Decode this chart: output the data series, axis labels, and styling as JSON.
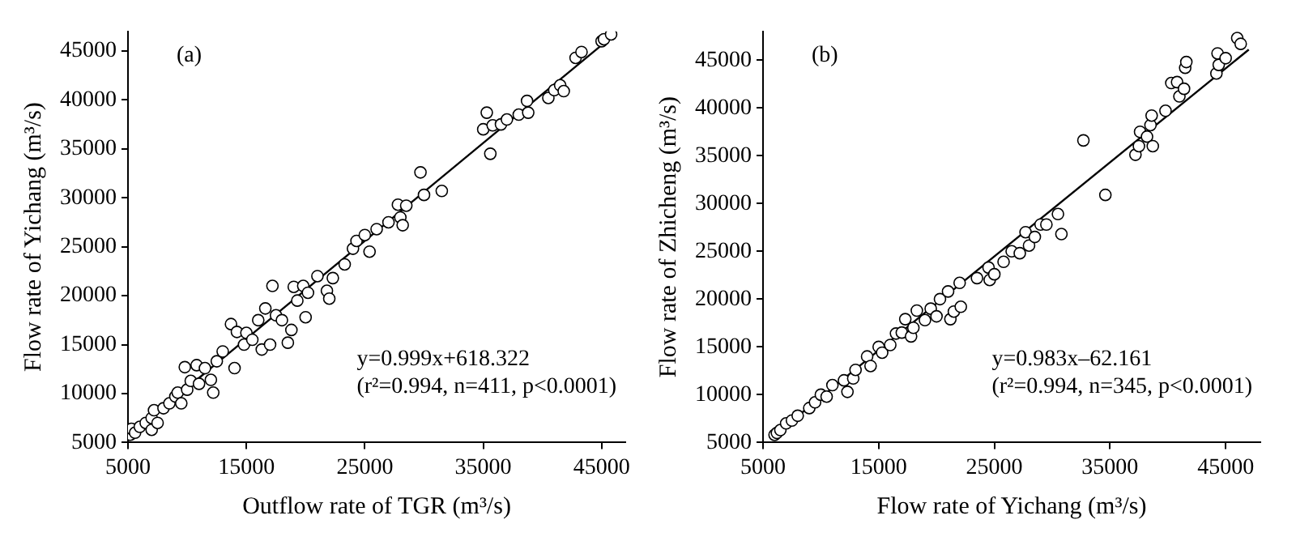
{
  "chart_data": [
    {
      "type": "scatter",
      "title": "(a)",
      "xlabel": "Outflow rate of TGR (m³/s)",
      "ylabel": "Flow rate of Yichang (m³/s)",
      "xlim": [
        5000,
        47000
      ],
      "ylim": [
        5000,
        47000
      ],
      "xticks": [
        5000,
        15000,
        25000,
        35000,
        45000
      ],
      "yticks": [
        5000,
        10000,
        15000,
        20000,
        25000,
        30000,
        35000,
        40000,
        45000
      ],
      "grid": false,
      "legend": false,
      "marker": "circle",
      "annotations": [
        "y=0.999x+618.322",
        "(r²=0.994, n=411, p<0.0001)"
      ],
      "series": [
        {
          "type": "scatter",
          "color": "#000000",
          "x": [
            5200,
            5300,
            5600,
            6000,
            6500,
            7000,
            7000,
            7200,
            7500,
            8000,
            8500,
            9000,
            9200,
            9500,
            9800,
            10000,
            10300,
            10800,
            11000,
            11500,
            12000,
            12200,
            12500,
            13000,
            13700,
            14000,
            14200,
            14800,
            15000,
            15500,
            16000,
            16300,
            16600,
            17000,
            17200,
            17500,
            18000,
            18500,
            18800,
            19000,
            19300,
            19800,
            20000,
            20200,
            21000,
            21800,
            22000,
            22300,
            23300,
            24000,
            24300,
            25000,
            25400,
            26000,
            27000,
            27800,
            28000,
            28200,
            28500,
            29700,
            30000,
            31500,
            35000,
            35300,
            35600,
            35800,
            36500,
            37000,
            38000,
            38700,
            38800,
            40500,
            41000,
            41500,
            41800,
            42800,
            43300,
            45000,
            45200,
            45800
          ],
          "values": [
            5800,
            6400,
            6000,
            6600,
            7000,
            6300,
            7500,
            8300,
            7000,
            8500,
            9000,
            9700,
            10100,
            9000,
            12700,
            10400,
            11300,
            12900,
            11000,
            12600,
            11400,
            10100,
            13300,
            14300,
            17100,
            12600,
            16300,
            15000,
            16200,
            15500,
            17500,
            14500,
            18700,
            15000,
            21000,
            18000,
            17500,
            15200,
            16500,
            20900,
            19500,
            21000,
            17800,
            20300,
            22000,
            20500,
            19700,
            21800,
            23200,
            24800,
            25600,
            26200,
            24500,
            26800,
            27500,
            29300,
            28000,
            27200,
            29200,
            32600,
            30300,
            30700,
            37000,
            38700,
            34500,
            37400,
            37500,
            38000,
            38500,
            39900,
            38700,
            40200,
            41000,
            41500,
            40900,
            44300,
            44900,
            46000,
            46200,
            46700
          ]
        },
        {
          "type": "line",
          "color": "#000000",
          "marker": "none",
          "x": [
            5000,
            46000
          ],
          "values": [
            5600,
            46600
          ]
        }
      ]
    },
    {
      "type": "scatter",
      "title": "(b)",
      "xlabel": "Flow rate of Yichang (m³/s)",
      "ylabel": "Flow rate of Zhicheng (m³/s)",
      "xlim": [
        5000,
        48000
      ],
      "ylim": [
        5000,
        48000
      ],
      "xticks": [
        5000,
        15000,
        25000,
        35000,
        45000
      ],
      "yticks": [
        5000,
        10000,
        15000,
        20000,
        25000,
        30000,
        35000,
        40000,
        45000
      ],
      "grid": false,
      "legend": false,
      "marker": "circle",
      "annotations": [
        "y=0.983x–62.161",
        "(r²=0.994, n=345, p<0.0001)"
      ],
      "series": [
        {
          "type": "scatter",
          "color": "#000000",
          "x": [
            6000,
            6200,
            6500,
            7000,
            7500,
            8000,
            9000,
            9500,
            10000,
            10500,
            11000,
            12000,
            12300,
            12800,
            13000,
            14000,
            14300,
            15000,
            15300,
            16000,
            16500,
            17000,
            17300,
            17800,
            18000,
            18300,
            19000,
            19500,
            20000,
            20300,
            21000,
            21200,
            21500,
            22000,
            22100,
            23500,
            24500,
            24600,
            25000,
            25800,
            26500,
            27200,
            27700,
            28000,
            28500,
            29000,
            29500,
            30500,
            30800,
            32700,
            34600,
            37200,
            37500,
            37600,
            38200,
            38500,
            38600,
            38700,
            39800,
            40300,
            40800,
            41000,
            41400,
            41500,
            41600,
            44200,
            44300,
            44400,
            45000,
            46000,
            46300
          ],
          "values": [
            5800,
            6000,
            6300,
            7000,
            7300,
            7800,
            8600,
            9200,
            10000,
            9800,
            11000,
            11500,
            10300,
            11700,
            12600,
            14000,
            13000,
            15000,
            14400,
            15200,
            16400,
            16500,
            17900,
            16100,
            17000,
            18800,
            17800,
            19000,
            18200,
            20000,
            20800,
            17900,
            18700,
            21700,
            19200,
            22200,
            23300,
            22000,
            22600,
            23900,
            25000,
            24800,
            27000,
            25600,
            26500,
            27800,
            27800,
            28900,
            26800,
            36600,
            30900,
            35100,
            36000,
            37500,
            37000,
            38200,
            39200,
            36000,
            39700,
            42600,
            42700,
            41200,
            42000,
            44200,
            44800,
            43600,
            45700,
            44500,
            45200,
            47300,
            46700
          ]
        },
        {
          "type": "line",
          "color": "#000000",
          "marker": "none",
          "x": [
            5800,
            47000
          ],
          "values": [
            5600,
            46100
          ]
        }
      ]
    }
  ]
}
